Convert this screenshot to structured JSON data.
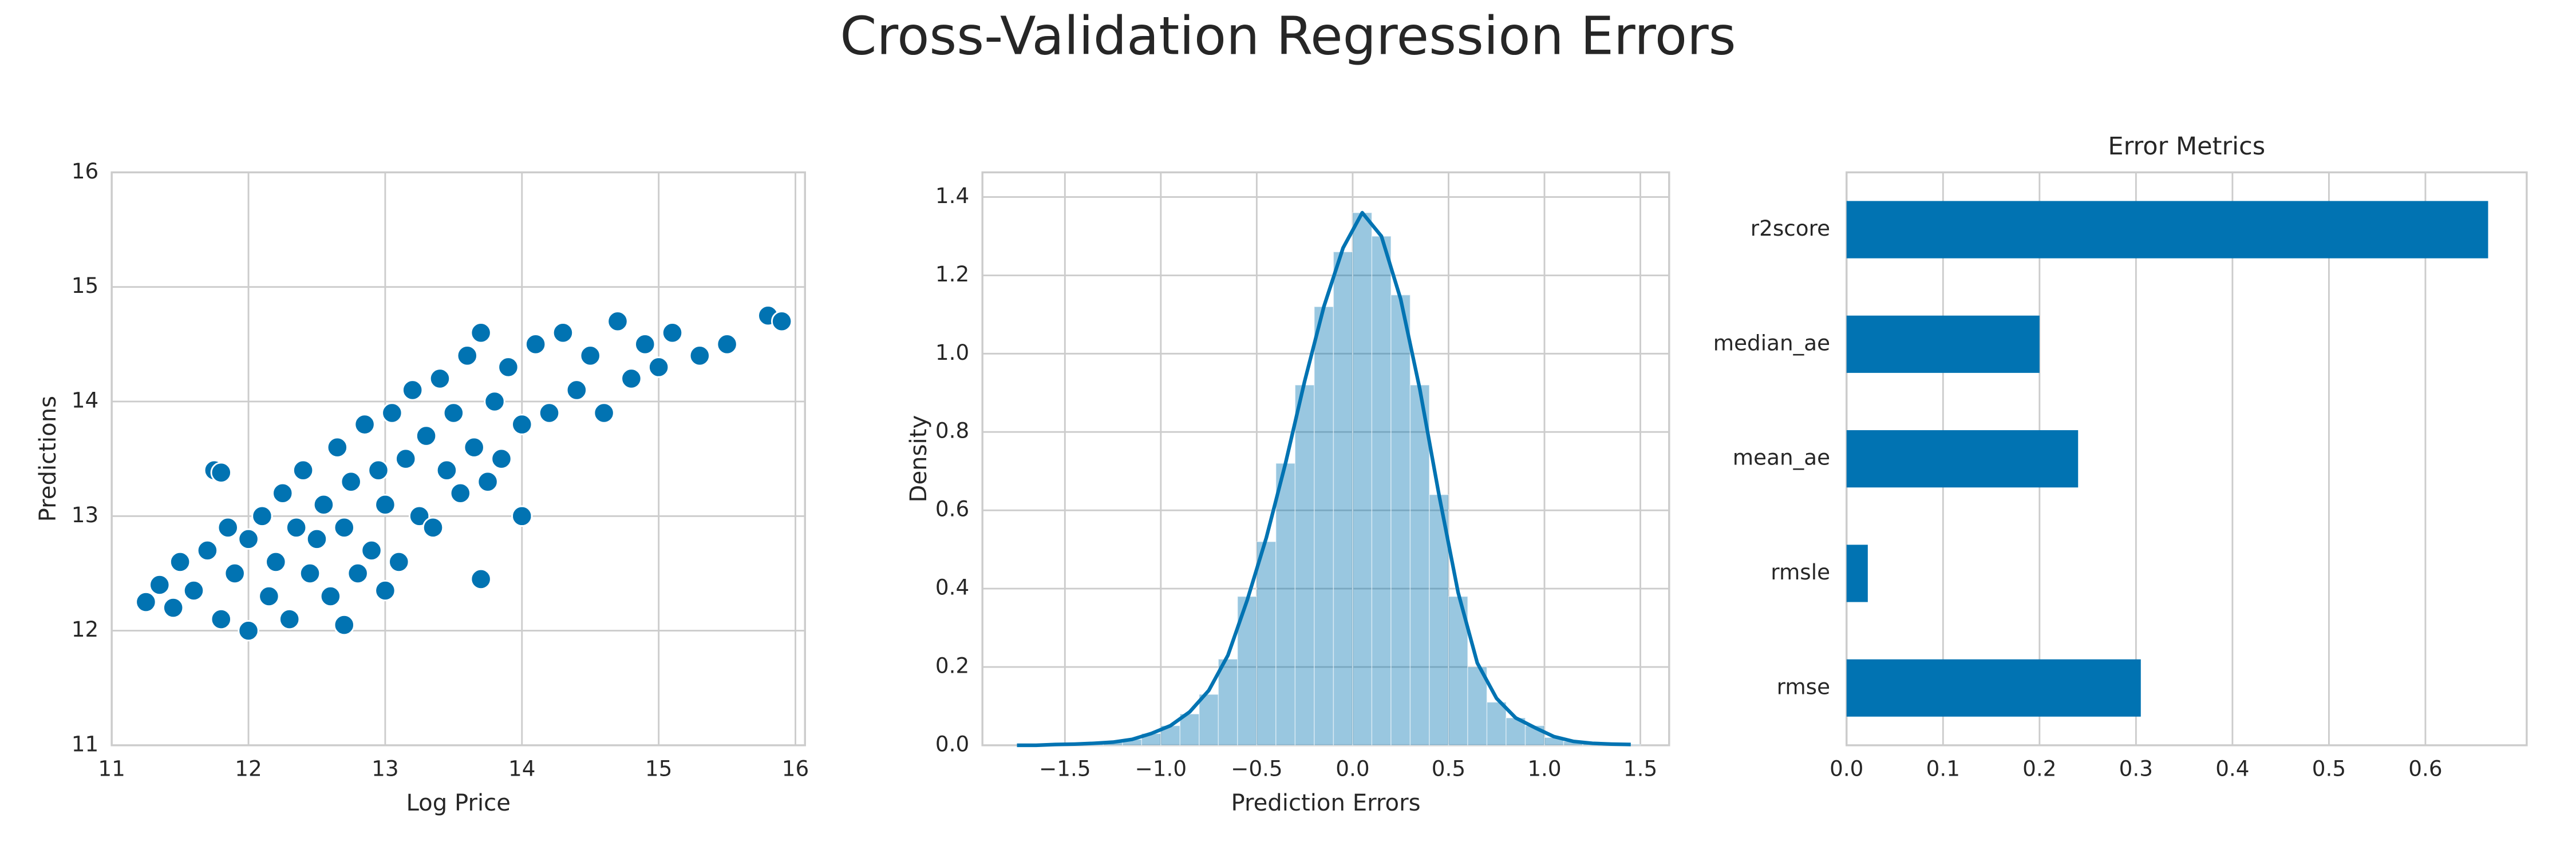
{
  "title": "Cross-Validation Regression Errors",
  "chart_data": [
    {
      "type": "scatter",
      "xlabel": "Log Price",
      "ylabel": "Predictions",
      "color": "#0173b2",
      "grid": true,
      "xlim": [
        11,
        16.07
      ],
      "ylim": [
        11,
        16
      ],
      "xticks": [
        11,
        12,
        13,
        14,
        15,
        16
      ],
      "yticks": [
        11,
        12,
        13,
        14,
        15,
        16
      ],
      "x": [
        11.25,
        11.35,
        11.45,
        11.5,
        11.6,
        11.7,
        11.75,
        11.8,
        11.85,
        11.9,
        12.0,
        12.0,
        12.1,
        12.15,
        12.2,
        12.25,
        12.3,
        12.35,
        12.4,
        12.45,
        12.5,
        12.55,
        12.6,
        12.65,
        12.7,
        12.75,
        12.8,
        12.85,
        12.9,
        12.95,
        13.0,
        13.05,
        13.1,
        13.15,
        13.2,
        13.25,
        13.3,
        13.35,
        13.4,
        13.45,
        13.5,
        13.55,
        13.6,
        13.65,
        13.7,
        13.75,
        13.8,
        13.85,
        13.9,
        14.0,
        14.1,
        14.2,
        14.3,
        14.4,
        14.5,
        14.6,
        14.7,
        14.8,
        14.9,
        15.0,
        15.1,
        15.3,
        15.5,
        15.8,
        15.9,
        11.8,
        13.7,
        12.7,
        13.0,
        14.0
      ],
      "values": [
        12.25,
        12.4,
        12.2,
        12.6,
        12.35,
        12.7,
        13.4,
        12.1,
        12.9,
        12.5,
        12.0,
        12.8,
        13.0,
        12.3,
        12.6,
        13.2,
        12.1,
        12.9,
        13.4,
        12.5,
        12.8,
        13.1,
        12.3,
        13.6,
        12.9,
        13.3,
        12.5,
        13.8,
        12.7,
        13.4,
        13.1,
        13.9,
        12.6,
        13.5,
        14.1,
        13.0,
        13.7,
        12.9,
        14.2,
        13.4,
        13.9,
        13.2,
        14.4,
        13.6,
        14.6,
        13.3,
        14.0,
        13.5,
        14.3,
        13.8,
        14.5,
        13.9,
        14.6,
        14.1,
        14.4,
        13.9,
        14.7,
        14.2,
        14.5,
        14.3,
        14.6,
        14.4,
        14.5,
        14.75,
        14.7,
        13.38,
        12.45,
        12.05,
        12.35,
        13.0
      ]
    },
    {
      "type": "histogram",
      "xlabel": "Prediction Errors",
      "ylabel": "Density",
      "color": "#0173b2",
      "grid": true,
      "xlim": [
        -1.93,
        1.65
      ],
      "ylim": [
        0,
        1.463
      ],
      "xticks": [
        {
          "value": -1.5,
          "label": "−1.5"
        },
        {
          "value": -1.0,
          "label": "−1.0"
        },
        {
          "value": -0.5,
          "label": "−0.5"
        },
        {
          "value": 0,
          "label": "0.0"
        },
        0.5,
        {
          "value": 1,
          "label": "1.0"
        },
        1.5
      ],
      "yticks": [
        {
          "value": 0,
          "label": "0.0"
        },
        0.2,
        0.4,
        0.6,
        0.8,
        {
          "value": 1,
          "label": "1.0"
        },
        1.2,
        1.4
      ],
      "bins": [
        -1.8,
        -1.7,
        -1.6,
        -1.5,
        -1.4,
        -1.3,
        -1.2,
        -1.1,
        -1.0,
        -0.9,
        -0.8,
        -0.7,
        -0.6,
        -0.5,
        -0.4,
        -0.3,
        -0.2,
        -0.1,
        0.0,
        0.1,
        0.2,
        0.3,
        0.4,
        0.5,
        0.6,
        0.7,
        0.8,
        0.9,
        1.0,
        1.1,
        1.2,
        1.3,
        1.4,
        1.5
      ],
      "values": [
        0,
        0,
        0.003,
        0.003,
        0.005,
        0.008,
        0.015,
        0.03,
        0.05,
        0.08,
        0.13,
        0.22,
        0.38,
        0.52,
        0.72,
        0.92,
        1.12,
        1.26,
        1.36,
        1.3,
        1.15,
        0.92,
        0.64,
        0.38,
        0.2,
        0.11,
        0.07,
        0.05,
        0.02,
        0.01,
        0.005,
        0.003,
        0.002
      ],
      "kde": {
        "x": [
          -1.75,
          -1.65,
          -1.55,
          -1.45,
          -1.35,
          -1.25,
          -1.15,
          -1.05,
          -0.95,
          -0.85,
          -0.75,
          -0.65,
          -0.55,
          -0.45,
          -0.35,
          -0.25,
          -0.15,
          -0.05,
          0.05,
          0.15,
          0.25,
          0.35,
          0.45,
          0.55,
          0.65,
          0.75,
          0.85,
          0.95,
          1.05,
          1.15,
          1.25,
          1.35,
          1.45
        ],
        "values": [
          0,
          0,
          0.002,
          0.003,
          0.005,
          0.008,
          0.015,
          0.03,
          0.05,
          0.085,
          0.14,
          0.23,
          0.37,
          0.53,
          0.72,
          0.93,
          1.12,
          1.27,
          1.36,
          1.3,
          1.14,
          0.91,
          0.64,
          0.39,
          0.21,
          0.12,
          0.07,
          0.045,
          0.022,
          0.01,
          0.005,
          0.003,
          0.002
        ]
      }
    },
    {
      "type": "barh",
      "title": "Error Metrics",
      "color": "#0173b2",
      "grid": true,
      "categories": [
        "r2score",
        "median_ae",
        "mean_ae",
        "rmsle",
        "rmse"
      ],
      "values": [
        0.665,
        0.2,
        0.24,
        0.022,
        0.305
      ],
      "xlim": [
        0,
        0.705
      ],
      "xticks": [
        {
          "value": 0,
          "label": "0.0"
        },
        0.1,
        0.2,
        0.3,
        0.4,
        0.5,
        0.6
      ]
    }
  ]
}
